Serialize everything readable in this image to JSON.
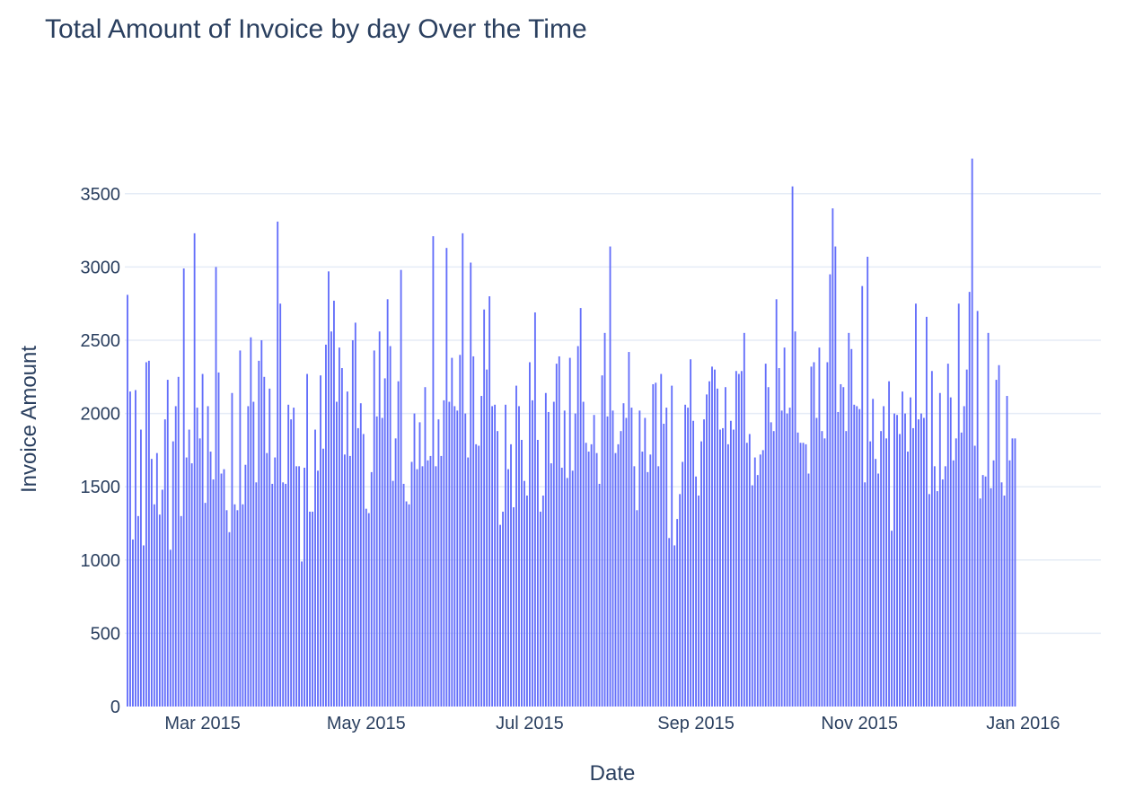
{
  "chart_data": {
    "type": "bar",
    "title": "Total Amount of Invoice by day Over the Time",
    "xlabel": "Date",
    "ylabel": "Invoice Amount",
    "x_range": [
      "2015-01-31",
      "2016-01-30"
    ],
    "ylim": [
      0,
      3750
    ],
    "y_ticks": [
      0,
      500,
      1000,
      1500,
      2000,
      2500,
      3000,
      3500
    ],
    "x_ticks": [
      {
        "date": "2015-03-01",
        "label": "Mar 2015"
      },
      {
        "date": "2015-05-01",
        "label": "May 2015"
      },
      {
        "date": "2015-07-01",
        "label": "Jul 2015"
      },
      {
        "date": "2015-09-01",
        "label": "Sep 2015"
      },
      {
        "date": "2015-11-01",
        "label": "Nov 2015"
      },
      {
        "date": "2016-01-01",
        "label": "Jan 2016"
      }
    ],
    "grid": true,
    "bar_color": "#636efa",
    "start_date": "2015-02-01",
    "values": [
      2810,
      2150,
      1140,
      2160,
      1300,
      1890,
      1100,
      2350,
      2360,
      1690,
      1380,
      1730,
      1310,
      1480,
      1960,
      2230,
      1070,
      1810,
      2050,
      2250,
      1300,
      2990,
      1700,
      1890,
      1660,
      3230,
      2040,
      1830,
      2270,
      1390,
      2050,
      1740,
      1550,
      3000,
      2280,
      1590,
      1620,
      1340,
      1190,
      2140,
      1380,
      1340,
      2430,
      1380,
      1650,
      2050,
      2520,
      2080,
      1530,
      2360,
      2500,
      2250,
      1730,
      2170,
      1520,
      1700,
      3310,
      2750,
      1530,
      1520,
      2060,
      1960,
      2040,
      1640,
      1640,
      990,
      1630,
      2270,
      1330,
      1330,
      1890,
      1610,
      2260,
      1760,
      2470,
      2970,
      2560,
      2770,
      2080,
      2450,
      2310,
      1720,
      2150,
      1710,
      2500,
      2620,
      1900,
      2070,
      1860,
      1350,
      1320,
      1600,
      2430,
      1980,
      2560,
      1970,
      2240,
      2780,
      2460,
      1540,
      1830,
      2220,
      2980,
      1520,
      1400,
      1380,
      1670,
      2000,
      1620,
      1940,
      1640,
      2180,
      1680,
      1710,
      3210,
      1640,
      1960,
      1710,
      2090,
      3130,
      2080,
      2380,
      2050,
      2020,
      2400,
      3230,
      2000,
      1700,
      3030,
      2390,
      1790,
      1780,
      2120,
      2710,
      2300,
      2800,
      2050,
      2060,
      1880,
      1240,
      1330,
      2060,
      1620,
      1790,
      1360,
      2190,
      2050,
      1820,
      1540,
      1440,
      2350,
      2090,
      2690,
      1820,
      1330,
      1440,
      2140,
      2010,
      1660,
      2080,
      2340,
      2390,
      1630,
      2020,
      1560,
      2380,
      1610,
      2000,
      2460,
      2720,
      2080,
      1800,
      1740,
      1790,
      1990,
      1730,
      1520,
      2260,
      2550,
      1980,
      3140,
      2020,
      1730,
      1790,
      1880,
      2070,
      1970,
      2420,
      2040,
      1640,
      1340,
      2020,
      1740,
      1970,
      1600,
      1720,
      2200,
      2210,
      1640,
      2270,
      1930,
      2040,
      1150,
      2190,
      1100,
      1280,
      1450,
      1670,
      2060,
      2040,
      2370,
      1950,
      1570,
      1440,
      1810,
      1960,
      2130,
      2220,
      2320,
      2300,
      2170,
      1890,
      1900,
      2180,
      1790,
      1950,
      1890,
      2290,
      2270,
      2290,
      2550,
      1800,
      1860,
      1510,
      1700,
      1580,
      1720,
      1750,
      2340,
      2180,
      1940,
      1880,
      2780,
      2310,
      2020,
      2450,
      2000,
      2040,
      3550,
      2560,
      1870,
      1800,
      1800,
      1790,
      1590,
      2320,
      2350,
      1970,
      2450,
      1880,
      1830,
      2350,
      2950,
      3400,
      3140,
      2010,
      2200,
      2180,
      1880,
      2550,
      2440,
      2060,
      2050,
      2030,
      2870,
      1530,
      3070,
      1810,
      2100,
      1690,
      1590,
      1880,
      2050,
      1830,
      2220,
      1200,
      2000,
      1990,
      1860,
      2150,
      2000,
      1740,
      2110,
      1900,
      2750,
      1960,
      2000,
      1970,
      2660,
      1450,
      2290,
      1640,
      1470,
      2140,
      1550,
      1640,
      2340,
      2110,
      1680,
      1830,
      2750,
      1870,
      2050,
      2300,
      2830,
      3740,
      1780,
      2700,
      1420,
      1580,
      1570,
      2550,
      1490,
      1680,
      2230,
      2330,
      1530,
      1440,
      2120,
      1680,
      1830,
      1830
    ]
  }
}
